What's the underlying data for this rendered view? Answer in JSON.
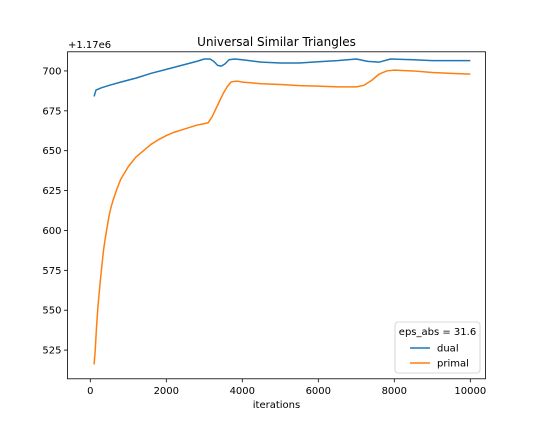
{
  "chart_data": {
    "type": "line",
    "title": "Universal Similar Triangles",
    "xlabel": "iterations",
    "ylabel": "",
    "y_offset_label": "+1.17e6",
    "xlim": [
      -600,
      10400
    ],
    "ylim": [
      507,
      712
    ],
    "x_ticks": [
      0,
      2000,
      4000,
      6000,
      8000,
      10000
    ],
    "y_ticks": [
      525,
      550,
      575,
      600,
      625,
      650,
      675,
      700
    ],
    "grid": false,
    "legend": {
      "title": "eps_abs = 31.6",
      "position": "lower-right"
    },
    "series": [
      {
        "name": "dual",
        "color": "#1f77b4",
        "x": [
          100,
          150,
          300,
          500,
          800,
          1200,
          1600,
          2000,
          2400,
          2800,
          3000,
          3150,
          3250,
          3350,
          3450,
          3550,
          3650,
          3800,
          4000,
          4500,
          5000,
          5500,
          6000,
          6500,
          7000,
          7300,
          7600,
          7900,
          8500,
          9000,
          9500,
          10000
        ],
        "y": [
          684,
          688,
          689.5,
          691,
          693,
          695.5,
          698.5,
          701,
          703.5,
          706,
          707.5,
          707.5,
          706,
          703.5,
          703,
          704.5,
          707,
          707.5,
          707,
          705.5,
          705,
          705,
          705.8,
          706.5,
          707.5,
          706,
          705.5,
          707.5,
          707,
          706.5,
          706.5,
          706.5
        ]
      },
      {
        "name": "primal",
        "color": "#ff7f0e",
        "x": [
          100,
          130,
          160,
          200,
          250,
          300,
          350,
          400,
          450,
          500,
          550,
          600,
          700,
          800,
          900,
          1000,
          1100,
          1200,
          1400,
          1600,
          1800,
          2000,
          2200,
          2400,
          2600,
          2800,
          3000,
          3100,
          3200,
          3300,
          3400,
          3500,
          3600,
          3700,
          3800,
          3900,
          4000,
          4500,
          5000,
          5500,
          6000,
          6500,
          7000,
          7200,
          7400,
          7600,
          7800,
          8000,
          8500,
          9000,
          9500,
          10000
        ],
        "y": [
          516,
          525,
          538,
          552,
          565,
          577,
          588,
          596,
          603,
          610,
          615,
          619,
          626,
          632,
          636,
          640,
          643,
          646,
          650,
          654,
          657,
          659.5,
          661.5,
          663,
          664.5,
          666,
          667,
          667.5,
          671,
          676,
          681,
          686,
          690,
          693,
          693.5,
          693.5,
          693,
          692,
          691.5,
          690.8,
          690.5,
          690,
          690,
          691,
          694,
          698,
          700,
          700.5,
          700,
          699,
          698.5,
          698
        ]
      }
    ]
  }
}
